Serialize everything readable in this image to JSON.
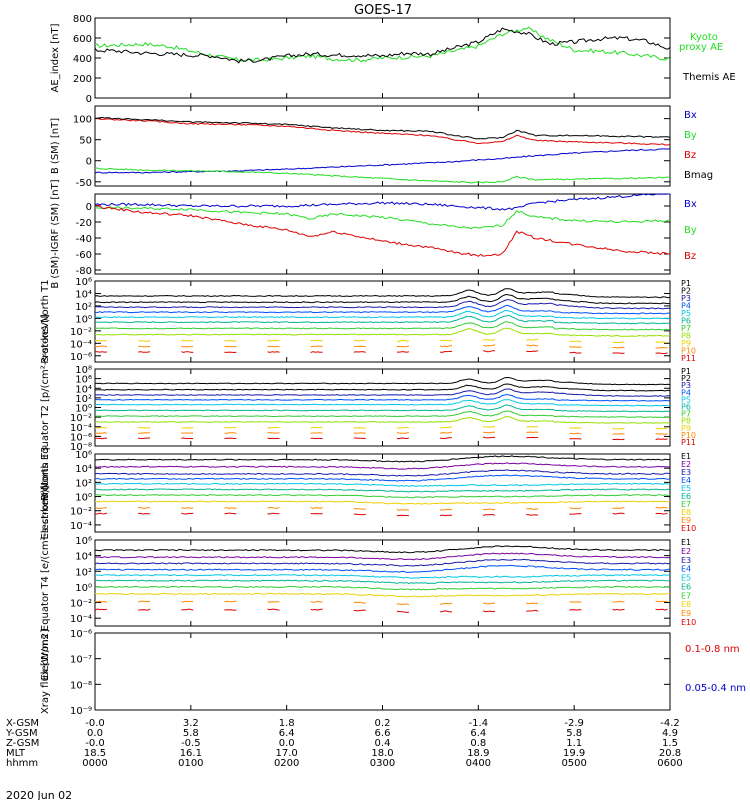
{
  "title": "GOES-17",
  "date_label": "2020 Jun 02",
  "ephemeris": {
    "row_labels": [
      "X-GSM",
      "Y-GSM",
      "Z-GSM",
      "MLT",
      "hhmm"
    ],
    "columns": [
      [
        "-0.0",
        "0.0",
        "-0.0",
        "18.5",
        "0000"
      ],
      [
        "3.2",
        "5.8",
        "-0.5",
        "16.1",
        "0100"
      ],
      [
        "1.8",
        "6.4",
        "0.0",
        "17.0",
        "0200"
      ],
      [
        "0.2",
        "6.6",
        "0.4",
        "18.0",
        "0300"
      ],
      [
        "-1.4",
        "6.4",
        "0.8",
        "18.9",
        "0400"
      ],
      [
        "-2.9",
        "5.8",
        "1.1",
        "19.9",
        "0500"
      ],
      [
        "-4.2",
        "4.9",
        "1.5",
        "20.8",
        "0600"
      ]
    ]
  },
  "colors": {
    "kyoto": "#22dd22",
    "themis": "#000000",
    "bx": "#0000cc",
    "by": "#22dd22",
    "bz": "#dd0000",
    "bmag": "#000000",
    "xray_long": "#dd0000",
    "xray_short": "#0000cc"
  },
  "chart_data": [
    {
      "type": "line",
      "ylabel": "AE_index [nT]",
      "ylim": [
        0,
        800
      ],
      "yticks": [
        0,
        200,
        400,
        600,
        800
      ],
      "ytick_labels": [
        "0",
        "200",
        "400",
        "600",
        "800"
      ],
      "x": [
        0,
        0.25,
        0.5,
        0.75,
        1,
        1.25,
        1.5,
        1.75,
        2,
        2.25,
        2.5,
        2.75,
        3,
        3.25,
        3.5,
        3.75,
        4,
        4.25,
        4.5,
        4.75,
        5,
        5.25,
        5.5,
        5.75,
        6
      ],
      "series": [
        {
          "name": "Kyoto proxy AE",
          "color_key": "kyoto",
          "values": [
            520,
            530,
            540,
            520,
            470,
            420,
            380,
            380,
            400,
            420,
            390,
            380,
            400,
            410,
            420,
            470,
            520,
            640,
            700,
            580,
            480,
            470,
            450,
            420,
            390
          ]
        },
        {
          "name": "Themis AE",
          "color_key": "themis",
          "values": [
            480,
            470,
            450,
            440,
            430,
            420,
            370,
            380,
            420,
            440,
            430,
            430,
            420,
            450,
            440,
            500,
            560,
            690,
            650,
            540,
            560,
            590,
            600,
            570,
            490
          ]
        }
      ]
    },
    {
      "type": "line",
      "ylabel": "B (SM) [nT]",
      "ylim": [
        -60,
        130
      ],
      "yticks": [
        -50,
        0,
        50,
        100
      ],
      "ytick_labels": [
        "-50",
        "0",
        "50",
        "100"
      ],
      "x": [
        0,
        0.5,
        1,
        1.5,
        2,
        2.5,
        3,
        3.5,
        3.75,
        4,
        4.25,
        4.4,
        4.6,
        5,
        5.5,
        6
      ],
      "series": [
        {
          "name": "Bx",
          "color_key": "bx",
          "values": [
            -28,
            -28,
            -26,
            -24,
            -20,
            -15,
            -10,
            -5,
            -2,
            2,
            5,
            8,
            12,
            18,
            24,
            28
          ]
        },
        {
          "name": "By",
          "color_key": "by",
          "values": [
            -18,
            -22,
            -24,
            -26,
            -30,
            -36,
            -42,
            -48,
            -50,
            -52,
            -50,
            -38,
            -45,
            -44,
            -42,
            -40
          ]
        },
        {
          "name": "Bz",
          "color_key": "bz",
          "values": [
            100,
            95,
            88,
            86,
            82,
            72,
            65,
            60,
            50,
            42,
            45,
            60,
            48,
            45,
            42,
            38
          ]
        },
        {
          "name": "Bmag",
          "color_key": "bmag",
          "values": [
            102,
            98,
            92,
            90,
            86,
            78,
            72,
            70,
            60,
            52,
            55,
            72,
            60,
            60,
            58,
            56
          ]
        }
      ]
    },
    {
      "type": "line",
      "ylabel": "B (SM)-IGRF (SM) [nT]",
      "ylim": [
        -85,
        15
      ],
      "yticks": [
        -80,
        -60,
        -40,
        -20,
        0
      ],
      "ytick_labels": [
        "-80",
        "-60",
        "-40",
        "-20",
        "0"
      ],
      "x": [
        0,
        0.5,
        1,
        1.5,
        2,
        2.25,
        2.5,
        3,
        3.5,
        3.75,
        4,
        4.25,
        4.4,
        4.6,
        5,
        5.5,
        6
      ],
      "series": [
        {
          "name": "Bx",
          "color_key": "bx",
          "values": [
            2,
            2,
            0,
            0,
            0,
            1,
            2,
            4,
            2,
            0,
            -2,
            -4,
            -3,
            4,
            8,
            12,
            16
          ]
        },
        {
          "name": "By",
          "color_key": "by",
          "values": [
            -2,
            -3,
            -4,
            -8,
            -10,
            -16,
            -10,
            -14,
            -22,
            -26,
            -28,
            -24,
            -6,
            -14,
            -18,
            -20,
            -18
          ]
        },
        {
          "name": "Bz",
          "color_key": "bz",
          "values": [
            0,
            -8,
            -12,
            -22,
            -30,
            -38,
            -32,
            -44,
            -52,
            -58,
            -62,
            -60,
            -32,
            -40,
            -48,
            -56,
            -60
          ]
        }
      ]
    },
    {
      "type": "line",
      "ylabel": "Protons North T1",
      "log": true,
      "ylim": [
        -7,
        6
      ],
      "yticks": [
        6,
        4,
        2,
        0,
        -2,
        -4,
        -6
      ],
      "ytick_labels": [
        "10⁶",
        "10⁴",
        "10²",
        "10⁰",
        "10⁻²",
        "10⁻⁴",
        "10⁻⁶"
      ],
      "series": [
        {
          "name": "P1",
          "color_key": "black",
          "level": 3.6
        },
        {
          "name": "P2",
          "color_key": "black",
          "level": 2.6
        },
        {
          "name": "P3",
          "color_key": "darkblue",
          "level": 1.8
        },
        {
          "name": "P4",
          "color_key": "blue",
          "level": 1.0
        },
        {
          "name": "P5",
          "color_key": "cyan",
          "level": 0.2
        },
        {
          "name": "P6",
          "color_key": "teal",
          "level": -0.6
        },
        {
          "name": "P7",
          "color_key": "green",
          "level": -1.6
        },
        {
          "name": "P8",
          "color_key": "lime",
          "level": -2.6
        },
        {
          "name": "P9",
          "color_key": "yellow",
          "level": -3.6
        },
        {
          "name": "P10",
          "color_key": "orange",
          "level": -4.5
        },
        {
          "name": "P11",
          "color_key": "red",
          "level": -5.4
        }
      ]
    },
    {
      "type": "line",
      "ylabel": "Protons Equator T2 [p/(cm²-s-sr-keV)]",
      "log": true,
      "ylim": [
        -8,
        8
      ],
      "yticks": [
        8,
        6,
        4,
        2,
        0,
        -2,
        -4,
        -6,
        -8
      ],
      "ytick_labels": [
        "10⁸",
        "10⁶",
        "10⁴",
        "10²",
        "10⁰",
        "10⁻²",
        "10⁻⁴",
        "10⁻⁶",
        "10⁻⁸"
      ],
      "series": [
        {
          "name": "P1",
          "color_key": "black",
          "level": 5.0
        },
        {
          "name": "P2",
          "color_key": "black",
          "level": 3.7
        },
        {
          "name": "P3",
          "color_key": "darkblue",
          "level": 2.6
        },
        {
          "name": "P4",
          "color_key": "blue",
          "level": 1.6
        },
        {
          "name": "P5",
          "color_key": "cyan",
          "level": 0.6
        },
        {
          "name": "P6",
          "color_key": "teal",
          "level": -0.6
        },
        {
          "name": "P7",
          "color_key": "green",
          "level": -1.8
        },
        {
          "name": "P8",
          "color_key": "lime",
          "level": -3.0
        },
        {
          "name": "P9",
          "color_key": "yellow",
          "level": -4.2
        },
        {
          "name": "P10",
          "color_key": "orange",
          "level": -5.3
        },
        {
          "name": "P11",
          "color_key": "red",
          "level": -6.4
        }
      ]
    },
    {
      "type": "line",
      "ylabel": "Electrons North T3",
      "log": true,
      "ylim": [
        -5,
        6
      ],
      "yticks": [
        6,
        4,
        2,
        0,
        -2,
        -4
      ],
      "ytick_labels": [
        "10⁶",
        "10⁴",
        "10²",
        "10⁰",
        "10⁻²",
        "10⁻⁴"
      ],
      "series": [
        {
          "name": "E1",
          "color_key": "black",
          "level": 5.2
        },
        {
          "name": "E2",
          "color_key": "purple",
          "level": 4.2
        },
        {
          "name": "E3",
          "color_key": "darkblue",
          "level": 3.2
        },
        {
          "name": "E4",
          "color_key": "blue",
          "level": 2.5
        },
        {
          "name": "E5",
          "color_key": "cyan",
          "level": 1.8
        },
        {
          "name": "E6",
          "color_key": "teal",
          "level": 1.0
        },
        {
          "name": "E7",
          "color_key": "green",
          "level": 0.2
        },
        {
          "name": "E8",
          "color_key": "yellow",
          "level": -0.7
        },
        {
          "name": "E9",
          "color_key": "orange",
          "level": -1.6
        },
        {
          "name": "E10",
          "color_key": "red",
          "level": -2.4
        }
      ]
    },
    {
      "type": "line",
      "ylabel": "Electrons Equator T4 [e/(cm²-s-sr-keV)]",
      "log": true,
      "ylim": [
        -5,
        6
      ],
      "yticks": [
        6,
        4,
        2,
        0,
        -2,
        -4
      ],
      "ytick_labels": [
        "10⁶",
        "10⁴",
        "10²",
        "10⁰",
        "10⁻²",
        "10⁻⁴"
      ],
      "series": [
        {
          "name": "E1",
          "color_key": "black",
          "level": 4.7
        },
        {
          "name": "E2",
          "color_key": "purple",
          "level": 3.8
        },
        {
          "name": "E3",
          "color_key": "darkblue",
          "level": 3.0
        },
        {
          "name": "E4",
          "color_key": "blue",
          "level": 2.2
        },
        {
          "name": "E5",
          "color_key": "cyan",
          "level": 1.5
        },
        {
          "name": "E6",
          "color_key": "teal",
          "level": 0.8
        },
        {
          "name": "E7",
          "color_key": "green",
          "level": 0.0
        },
        {
          "name": "E8",
          "color_key": "yellow",
          "level": -0.9
        },
        {
          "name": "E9",
          "color_key": "orange",
          "level": -1.9
        },
        {
          "name": "E10",
          "color_key": "red",
          "level": -2.9
        }
      ]
    },
    {
      "type": "line",
      "ylabel": "Xray flux [W/m2]",
      "log": true,
      "ylim": [
        -9,
        -6
      ],
      "yticks": [
        -9,
        -8,
        -7,
        -6
      ],
      "ytick_labels": [
        "10⁻⁹",
        "10⁻⁸",
        "10⁻⁷",
        "10⁻⁶"
      ],
      "x": [
        0,
        1,
        2,
        3,
        3.9,
        4.1,
        4.5,
        5,
        5.5,
        6
      ],
      "series": [
        {
          "name": "0.1-0.8 nm",
          "color_key": "xray_long",
          "values": [
            -7.25,
            -7.25,
            -7.22,
            -7.2,
            -7.15,
            -7.22,
            -7.2,
            -7.1,
            -7.05,
            -7.0
          ]
        },
        {
          "name": "0.05-0.4 nm",
          "color_key": "xray_short",
          "values": [
            -8.65,
            -8.6,
            -8.6,
            -8.55,
            -8.5,
            -8.6,
            -8.55,
            -8.55,
            -8.5,
            -8.45
          ]
        }
      ]
    }
  ]
}
